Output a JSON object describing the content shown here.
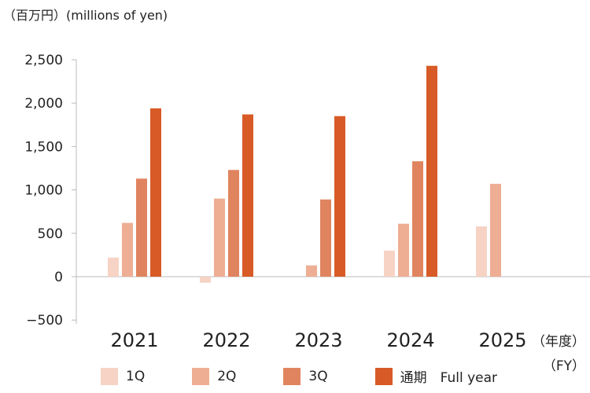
{
  "chart_data": {
    "type": "bar",
    "unit_label": "（百万円）(millions of yen)",
    "xunit_label_top": "（年度）",
    "xunit_label_bottom": "（FY）",
    "categories": [
      "2021",
      "2022",
      "2023",
      "2024",
      "2025"
    ],
    "series": [
      {
        "name": "1Q",
        "color": "#f6d3c4",
        "values": [
          220,
          -70,
          null,
          300,
          580
        ]
      },
      {
        "name": "2Q",
        "color": "#eeae93",
        "values": [
          620,
          900,
          130,
          610,
          1070
        ]
      },
      {
        "name": "3Q",
        "color": "#e0845f",
        "values": [
          1130,
          1230,
          890,
          1330,
          null
        ]
      },
      {
        "name": "通期　Full year",
        "color": "#d85a27",
        "values": [
          1940,
          1870,
          1850,
          2430,
          null
        ]
      }
    ],
    "ylim": [
      -500,
      2500
    ],
    "yticks": [
      -500,
      0,
      500,
      1000,
      1500,
      2000,
      2500
    ],
    "ytick_labels": [
      "−500",
      "0",
      "500",
      "1,000",
      "1,500",
      "2,000",
      "2,500"
    ],
    "grid": false,
    "legend_position": "bottom"
  }
}
